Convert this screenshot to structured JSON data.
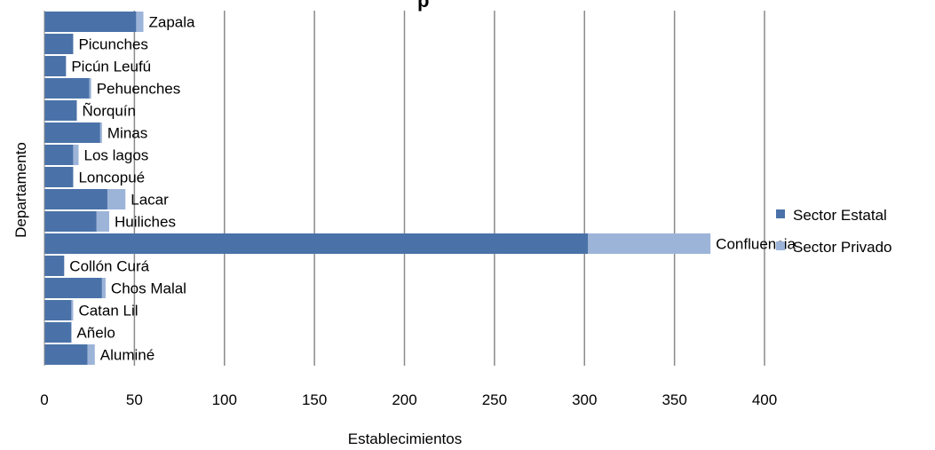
{
  "chart_data": {
    "type": "bar",
    "orientation": "horizontal",
    "stacked": true,
    "title_fragment": "p",
    "xlabel": "Establecimientos",
    "ylabel": "Departamento",
    "xlim": [
      0,
      400
    ],
    "xticks": [
      "0",
      "50",
      "100",
      "150",
      "200",
      "250",
      "300",
      "350",
      "400"
    ],
    "grid": true,
    "legend_position": "right",
    "categories": [
      "Zapala",
      "Picunches",
      "Picún Leufú",
      "Pehuenches",
      "Ñorquín",
      "Minas",
      "Los lagos",
      "Loncopué",
      "Lacar",
      "Huiliches",
      "Confluencia",
      "Collón Curá",
      "Chos Malal",
      "Catan Lil",
      "Añelo",
      "Aluminé"
    ],
    "series": [
      {
        "name": "Sector Estatal",
        "color": "#4a72a8",
        "values": [
          51,
          16,
          12,
          25,
          18,
          31,
          16,
          16,
          35,
          29,
          302,
          11,
          32,
          15,
          15,
          24
        ]
      },
      {
        "name": "Sector Privado",
        "color": "#9db4d9",
        "values": [
          4,
          0,
          0,
          1,
          0,
          1,
          3,
          0,
          10,
          7,
          68,
          0,
          2,
          1,
          0,
          4
        ]
      }
    ]
  }
}
